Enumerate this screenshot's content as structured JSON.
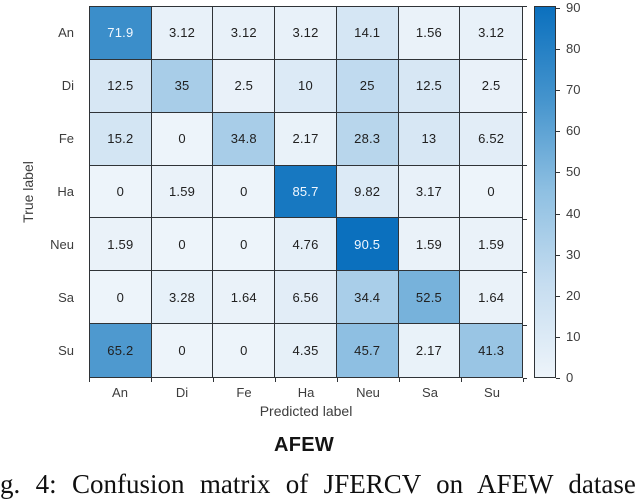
{
  "chart_data": {
    "type": "heatmap",
    "title": "AFEW",
    "xlabel": "Predicted label",
    "ylabel": "True label",
    "categories": [
      "An",
      "Di",
      "Fe",
      "Ha",
      "Neu",
      "Sa",
      "Su"
    ],
    "matrix": [
      [
        71.9,
        3.12,
        3.12,
        3.12,
        14.1,
        1.56,
        3.12
      ],
      [
        12.5,
        35,
        2.5,
        10,
        25,
        12.5,
        2.5
      ],
      [
        15.2,
        0,
        34.8,
        2.17,
        28.3,
        13,
        6.52
      ],
      [
        0,
        1.59,
        0,
        85.7,
        9.82,
        3.17,
        0
      ],
      [
        1.59,
        0,
        0,
        4.76,
        90.5,
        1.59,
        1.59
      ],
      [
        0,
        3.28,
        1.64,
        6.56,
        34.4,
        52.5,
        1.64
      ],
      [
        65.2,
        0,
        0,
        4.35,
        45.7,
        2.17,
        41.3
      ]
    ],
    "colorbar": {
      "min": 0,
      "max": 90.5,
      "ticks": [
        0,
        10,
        20,
        30,
        40,
        50,
        60,
        70,
        80,
        90
      ]
    },
    "colors": {
      "ramp": [
        [
          0.0,
          "#edf4fa"
        ],
        [
          0.25,
          "#c6ddf0"
        ],
        [
          0.5,
          "#8fc0e2"
        ],
        [
          0.75,
          "#4594cd"
        ],
        [
          1.0,
          "#0b70be"
        ]
      ],
      "grid_line": "#2f3337",
      "cell_text_dark": "#212121",
      "cell_text_light": "#f2f8ff",
      "light_text_threshold": 0.77
    },
    "legend_position": "right-colorbar",
    "grid": true
  },
  "caption": {
    "text": "g. 4: Confusion matrix of JFERCV on AFEW datase"
  }
}
